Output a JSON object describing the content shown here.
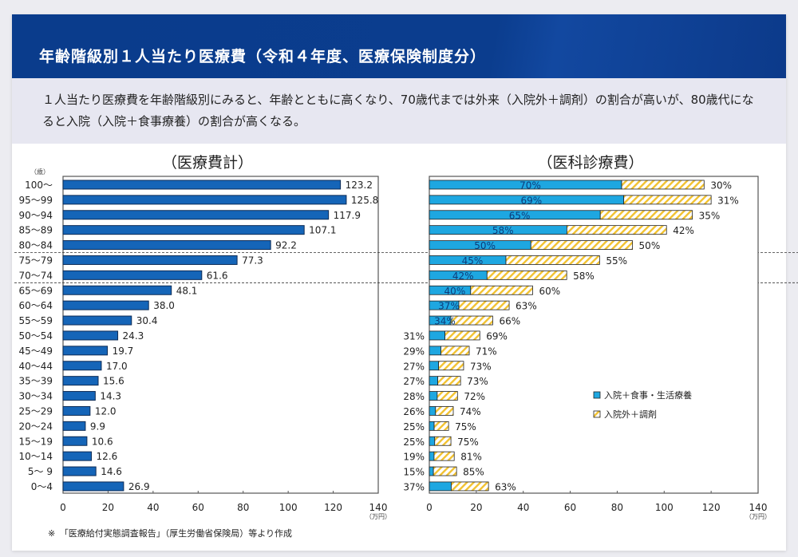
{
  "header": {
    "title": "年齢階級別１人当たり医療費（令和４年度、医療保険制度分）"
  },
  "description": "１人当たり医療費を年齢階級別にみると、年齢とともに高くなり、70歳代までは外来（入院外＋調剤）の割合が高いが、80歳代になると入院（入院＋食事療養）の割合が高くなる。",
  "footnote": "※　「医療給付実態調査報告」（厚生労働省保険局）等より作成",
  "colors": {
    "primary_bar": "#1565b8",
    "inpatient": "#1ea7e1",
    "outpatient_hatch": "#f2c230",
    "header": "#0b3d8e"
  },
  "chart_data": [
    {
      "type": "bar",
      "orientation": "horizontal",
      "title": "（医療費計）",
      "ylabel": "（歳）",
      "xlabel": "（万円）",
      "xlim": [
        0,
        140
      ],
      "xticks": [
        0,
        20,
        40,
        60,
        80,
        100,
        120,
        140
      ],
      "categories": [
        "100〜",
        "95〜99",
        "90〜94",
        "85〜89",
        "80〜84",
        "75〜79",
        "70〜74",
        "65〜69",
        "60〜64",
        "55〜59",
        "50〜54",
        "45〜49",
        "40〜44",
        "35〜39",
        "30〜34",
        "25〜29",
        "20〜24",
        "15〜19",
        "10〜14",
        "5〜 9",
        "0〜4"
      ],
      "values": [
        123.2,
        125.8,
        117.9,
        107.1,
        92.2,
        77.3,
        61.6,
        48.1,
        38.0,
        30.4,
        24.3,
        19.7,
        17.0,
        15.6,
        14.3,
        12.0,
        9.9,
        10.6,
        12.6,
        14.6,
        26.9
      ],
      "value_labels": [
        "123.2",
        "125.8",
        "117.9",
        "107.1",
        "92.2",
        "77.3",
        "61.6",
        "48.1",
        "38.0",
        "30.4",
        "24.3",
        "19.7",
        "17.0",
        "15.6",
        "14.3",
        "12.0",
        "9.9",
        "10.6",
        "12.6",
        "14.6",
        "26.9"
      ],
      "dashed_separators_after": [
        "80〜84",
        "70〜74"
      ]
    },
    {
      "type": "bar",
      "orientation": "horizontal",
      "stacked": true,
      "title": "（医科診療費）",
      "xlabel": "（万円）",
      "xlim": [
        0,
        140
      ],
      "xticks": [
        0,
        20,
        40,
        60,
        80,
        100,
        120,
        140
      ],
      "categories": [
        "100〜",
        "95〜99",
        "90〜94",
        "85〜89",
        "80〜84",
        "75〜79",
        "70〜74",
        "65〜69",
        "60〜64",
        "55〜59",
        "50〜54",
        "45〜49",
        "40〜44",
        "35〜39",
        "30〜34",
        "25〜29",
        "20〜24",
        "15〜19",
        "10〜14",
        "5〜 9",
        "0〜4"
      ],
      "totals": [
        117,
        120,
        112,
        101,
        86.5,
        72.5,
        58.5,
        44,
        34,
        27,
        21.5,
        17,
        14.6,
        13.3,
        12,
        10.2,
        8.2,
        9.2,
        10.6,
        11.6,
        25.2
      ],
      "series": [
        {
          "name": "入院＋食事・生活療養",
          "share_pct": [
            70,
            69,
            65,
            58,
            50,
            45,
            42,
            40,
            37,
            34,
            31,
            29,
            27,
            27,
            28,
            26,
            25,
            25,
            19,
            15,
            37
          ]
        },
        {
          "name": "入院外＋調剤",
          "share_pct": [
            30,
            31,
            35,
            42,
            50,
            55,
            58,
            60,
            63,
            66,
            69,
            71,
            73,
            73,
            72,
            74,
            75,
            75,
            81,
            85,
            63
          ]
        }
      ],
      "legend": {
        "position": "lower-right",
        "entries": [
          "入院＋食事・生活療養",
          "入院外＋調剤"
        ]
      }
    }
  ]
}
